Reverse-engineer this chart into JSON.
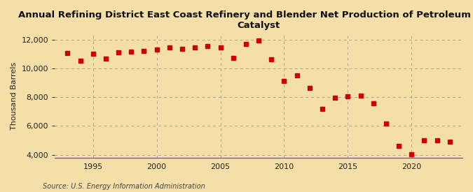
{
  "title": "Annual Refining District East Coast Refinery and Blender Net Production of Petroleum Coke\nCatalyst",
  "ylabel": "Thousand Barrels",
  "source": "Source: U.S. Energy Information Administration",
  "background_color": "#f5dfa8",
  "plot_bg_color": "#f5dfa8",
  "marker_color": "#cc0000",
  "years": [
    1993,
    1994,
    1995,
    1996,
    1997,
    1998,
    1999,
    2000,
    2001,
    2002,
    2003,
    2004,
    2005,
    2006,
    2007,
    2008,
    2009,
    2010,
    2011,
    2012,
    2013,
    2014,
    2015,
    2016,
    2017,
    2018,
    2019,
    2020,
    2021,
    2022,
    2023
  ],
  "values": [
    11050,
    10550,
    11000,
    10650,
    11100,
    11150,
    11200,
    11300,
    11450,
    11350,
    11450,
    11550,
    11450,
    10700,
    11700,
    11950,
    10600,
    9100,
    9500,
    8650,
    7200,
    7950,
    8050,
    8100,
    7550,
    6150,
    4600,
    4050,
    5000,
    5000,
    4900
  ],
  "xlim": [
    1992,
    2024
  ],
  "ylim": [
    3800,
    12400
  ],
  "yticks": [
    4000,
    6000,
    8000,
    10000,
    12000
  ],
  "xticks": [
    1995,
    2000,
    2005,
    2010,
    2015,
    2020
  ],
  "title_fontsize": 9.5,
  "label_fontsize": 8,
  "tick_fontsize": 8,
  "source_fontsize": 7,
  "marker_size": 4
}
